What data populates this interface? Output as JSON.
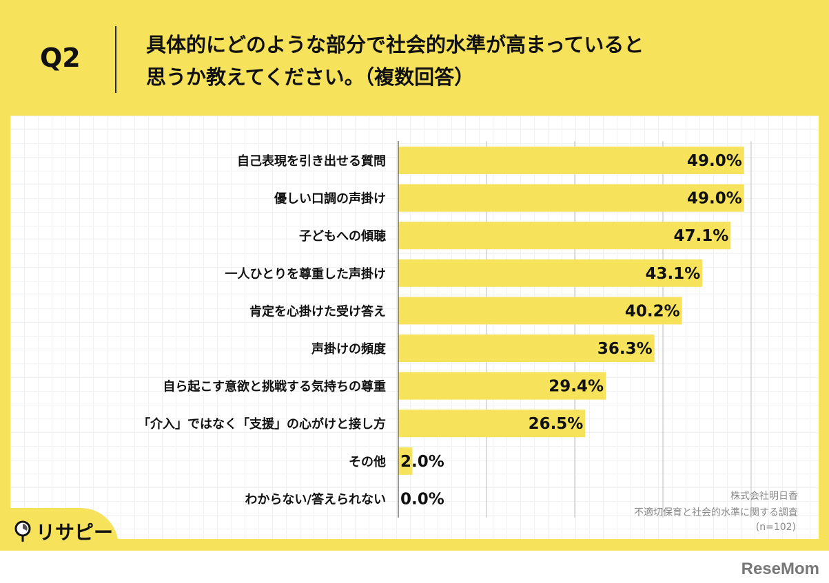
{
  "header": {
    "question": "Q2",
    "title_line1": "具体的にどのような部分で社会的水準が高まっていると",
    "title_line2": "思うか教えてください。（複数回答）"
  },
  "source": {
    "line1": "株式会社明日香",
    "line2": "不適切保育と社会的水準に関する調査",
    "line3": "(n=102)"
  },
  "logos": {
    "brand": "リサピー",
    "watermark": "ReseMom"
  },
  "colors": {
    "background": "#F6E35B",
    "bar": "#F6E35B",
    "grid": "#bbbbbb"
  },
  "chart_data": {
    "type": "bar",
    "orientation": "horizontal",
    "xlim": [
      0,
      50
    ],
    "grid": true,
    "gridlines": [
      12.5,
      25,
      37.5,
      50
    ],
    "categories": [
      "自己表現を引き出せる質問",
      "優しい口調の声掛け",
      "子どもへの傾聴",
      "一人ひとりを尊重した声掛け",
      "肯定を心掛けた受け答え",
      "声掛けの頻度",
      "自ら起こす意欲と挑戦する気持ちの尊重",
      "「介入」ではなく「支援」の心がけと接し方",
      "その他",
      "わからない/答えられない"
    ],
    "values": [
      49.0,
      49.0,
      47.1,
      43.1,
      40.2,
      36.3,
      29.4,
      26.5,
      2.0,
      0.0
    ],
    "labels": [
      "49.0%",
      "49.0%",
      "47.1%",
      "43.1%",
      "40.2%",
      "36.3%",
      "29.4%",
      "26.5%",
      "2.0%",
      "0.0%"
    ]
  }
}
